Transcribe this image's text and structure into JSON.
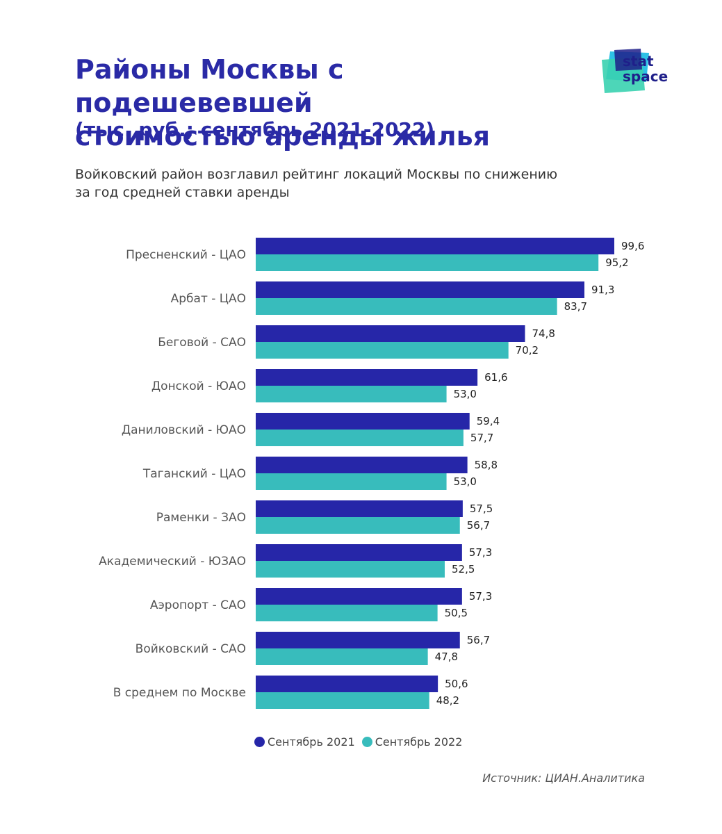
{
  "header": {
    "title_lines": [
      "Районы Москвы с подешевевшей",
      "стоимостью аренды жилья"
    ],
    "units": "(тыс. руб.; сентябрь 2021-2022)",
    "lead_lines": [
      "Войковский район возглавил рейтинг локаций Москвы по снижению",
      "за год средней ставки аренды"
    ]
  },
  "logo": {
    "line1": "stat",
    "line2": "space",
    "colors": [
      "#2ec1e6",
      "#1f1f8a",
      "#3ad1b0"
    ]
  },
  "colors": {
    "series_2021": "#2626a8",
    "series_2022": "#38bcbc",
    "label": "#555555",
    "value": "#222222"
  },
  "chart_data": {
    "type": "bar",
    "orientation": "horizontal",
    "categories": [
      "Пресненский - ЦАО",
      "Арбат - ЦАО",
      "Беговой - САО",
      "Донской - ЮАО",
      "Даниловский - ЮАО",
      "Таганский - ЦАО",
      "Раменки - ЗАО",
      "Академический - ЮЗАО",
      "Аэропорт - САО",
      "Войковский - САО",
      "В среднем по Москве"
    ],
    "series": [
      {
        "name": "Сентябрь 2021",
        "values": [
          99.6,
          91.3,
          74.8,
          61.6,
          59.4,
          58.8,
          57.5,
          57.3,
          57.3,
          56.7,
          50.6
        ],
        "labels": [
          "99,6",
          "91,3",
          "74,8",
          "61,6",
          "59,4",
          "58,8",
          "57,5",
          "57,3",
          "57,3",
          "56,7",
          "50,6"
        ]
      },
      {
        "name": "Сентябрь 2022",
        "values": [
          95.2,
          83.7,
          70.2,
          53.0,
          57.7,
          53.0,
          56.7,
          52.5,
          50.5,
          47.8,
          48.2
        ],
        "labels": [
          "95,2",
          "83,7",
          "70,2",
          "53,0",
          "57,7",
          "53,0",
          "56,7",
          "52,5",
          "50,5",
          "47,8",
          "48,2"
        ]
      }
    ],
    "xlim": [
      0,
      99.6
    ],
    "grid": false,
    "legend_position": "bottom"
  },
  "source": "Источник: ЦИАН.Аналитика"
}
